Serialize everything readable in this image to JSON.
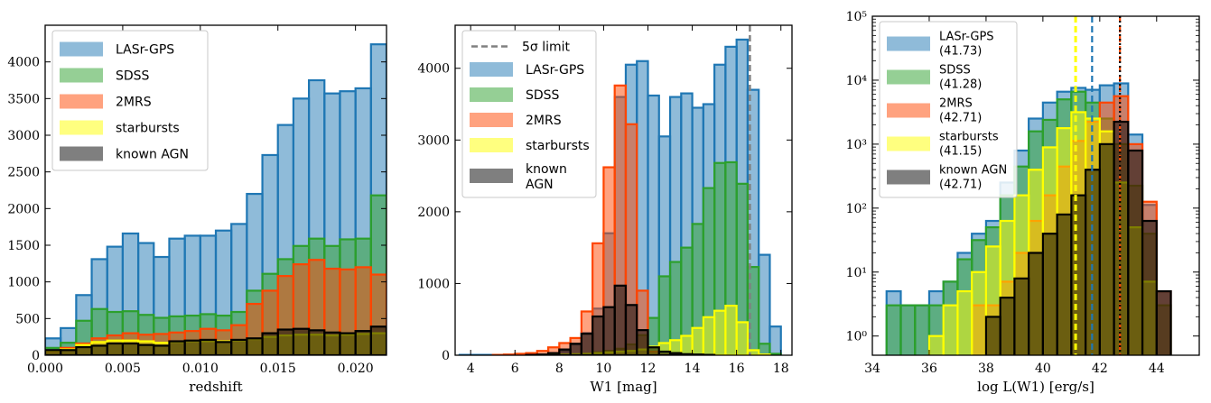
{
  "colors": {
    "LASr-GPS": "#1f77b4",
    "SDSS": "#2ca02c",
    "2MRS": "#ff4500",
    "starbursts": "#ffff00",
    "known AGN": "#000000"
  },
  "chart_data": [
    {
      "type": "bar",
      "xlabel": "redshift",
      "ylabel": "",
      "xlim": [
        0.0,
        0.022
      ],
      "ylim": [
        0,
        4500
      ],
      "xticks": [
        0.0,
        0.005,
        0.01,
        0.015,
        0.02
      ],
      "xtick_labels": [
        "0.000",
        "0.005",
        "0.010",
        "0.015",
        "0.020"
      ],
      "yticks": [
        0,
        500,
        1000,
        1500,
        2000,
        2500,
        3000,
        3500,
        4000
      ],
      "yscale": "linear",
      "legend_position": "top-left",
      "bin_edges": [
        0.0,
        0.001,
        0.002,
        0.003,
        0.004,
        0.005,
        0.006,
        0.007,
        0.008,
        0.009,
        0.01,
        0.011,
        0.012,
        0.013,
        0.014,
        0.015,
        0.016,
        0.017,
        0.018,
        0.019,
        0.02,
        0.021,
        0.022
      ],
      "series": [
        {
          "name": "LASr-GPS",
          "values": [
            230,
            370,
            820,
            1310,
            1480,
            1660,
            1530,
            1340,
            1590,
            1630,
            1630,
            1700,
            1790,
            2200,
            2730,
            3140,
            3500,
            3750,
            3570,
            3600,
            3640,
            4240
          ]
        },
        {
          "name": "SDSS",
          "values": [
            100,
            170,
            470,
            630,
            590,
            600,
            550,
            510,
            530,
            540,
            560,
            540,
            590,
            880,
            1110,
            1310,
            1490,
            1590,
            1490,
            1580,
            1590,
            2180
          ]
        },
        {
          "name": "2MRS",
          "values": [
            50,
            100,
            160,
            230,
            270,
            300,
            280,
            290,
            310,
            330,
            360,
            340,
            410,
            700,
            880,
            1080,
            1240,
            1300,
            1180,
            1170,
            1200,
            1100
          ]
        },
        {
          "name": "starbursts",
          "values": [
            60,
            80,
            140,
            180,
            200,
            200,
            190,
            170,
            180,
            190,
            190,
            190,
            200,
            220,
            250,
            270,
            280,
            280,
            270,
            280,
            290,
            300
          ]
        },
        {
          "name": "known AGN",
          "values": [
            70,
            70,
            110,
            130,
            160,
            160,
            140,
            130,
            190,
            200,
            210,
            180,
            210,
            230,
            300,
            350,
            360,
            340,
            310,
            300,
            330,
            390
          ]
        }
      ]
    },
    {
      "type": "bar",
      "xlabel": "W1 [mag]",
      "ylabel": "",
      "xlim": [
        3.3,
        18.5
      ],
      "ylim": [
        0,
        4600
      ],
      "xticks": [
        4,
        6,
        8,
        10,
        12,
        14,
        16,
        18
      ],
      "xtick_labels": [
        "4",
        "6",
        "8",
        "10",
        "12",
        "14",
        "16",
        "18"
      ],
      "yticks": [
        0,
        1000,
        2000,
        3000,
        4000
      ],
      "yscale": "linear",
      "legend_position": "top-left",
      "vline": {
        "x": 16.6,
        "label": "5σ limit"
      },
      "bin_edges": [
        3.5,
        4.0,
        4.5,
        5.0,
        5.5,
        6.0,
        6.5,
        7.0,
        7.5,
        8.0,
        8.5,
        9.0,
        9.5,
        10.0,
        10.5,
        11.0,
        11.5,
        12.0,
        12.5,
        13.0,
        13.5,
        14.0,
        14.5,
        15.0,
        15.5,
        16.0,
        16.5,
        17.0,
        17.5,
        18.0
      ],
      "series": [
        {
          "name": "LASr-GPS",
          "values": [
            5,
            5,
            5,
            5,
            5,
            5,
            5,
            10,
            20,
            60,
            150,
            310,
            650,
            1700,
            3600,
            4050,
            4100,
            3620,
            3050,
            3600,
            3650,
            3450,
            3500,
            4050,
            4300,
            4400,
            3700,
            1400,
            400,
            100
          ]
        },
        {
          "name": "SDSS",
          "values": [
            0,
            0,
            0,
            0,
            0,
            0,
            0,
            0,
            0,
            5,
            10,
            20,
            40,
            60,
            90,
            150,
            280,
            520,
            1100,
            1300,
            1500,
            1830,
            2330,
            2680,
            2690,
            2390,
            1230,
            160,
            20,
            0
          ]
        },
        {
          "name": "2MRS",
          "values": [
            0,
            0,
            0,
            5,
            10,
            20,
            30,
            60,
            110,
            170,
            240,
            610,
            1560,
            2620,
            3760,
            3220,
            900,
            50,
            5,
            0,
            0,
            0,
            0,
            0,
            0,
            0,
            0,
            0,
            0,
            0
          ]
        },
        {
          "name": "starbursts",
          "values": [
            0,
            0,
            0,
            0,
            0,
            0,
            0,
            0,
            5,
            10,
            15,
            20,
            30,
            40,
            50,
            60,
            80,
            120,
            170,
            210,
            270,
            380,
            530,
            620,
            690,
            460,
            70,
            10,
            0,
            0
          ]
        },
        {
          "name": "known AGN",
          "values": [
            0,
            0,
            0,
            0,
            0,
            0,
            5,
            10,
            30,
            80,
            160,
            300,
            540,
            670,
            970,
            700,
            350,
            110,
            50,
            30,
            15,
            10,
            5,
            0,
            0,
            0,
            0,
            0,
            0,
            0
          ]
        }
      ]
    },
    {
      "type": "bar",
      "xlabel": "log L(W1) [erg/s]",
      "ylabel": "",
      "xlim": [
        34,
        45.5
      ],
      "ylim_log10": [
        -0.3,
        5
      ],
      "xticks": [
        34,
        36,
        38,
        40,
        42,
        44
      ],
      "xtick_labels": [
        "34",
        "36",
        "38",
        "40",
        "42",
        "44"
      ],
      "yticks_log10": [
        0,
        1,
        2,
        3,
        4,
        5
      ],
      "ytick_labels": [
        "10⁰",
        "10¹",
        "10²",
        "10³",
        "10⁴",
        "10⁵"
      ],
      "yscale": "log",
      "legend_position": "top-left",
      "vlines": [
        {
          "series": "LASr-GPS",
          "x": 41.73
        },
        {
          "series": "starbursts",
          "x": 41.15
        },
        {
          "series": "2MRS",
          "x": 42.71
        },
        {
          "series": "known AGN",
          "x": 42.71
        }
      ],
      "legend_values": {
        "LASr-GPS": "(41.73)",
        "SDSS": "(41.28)",
        "2MRS": "(42.71)",
        "starbursts": "(41.15)",
        "known AGN": "(42.71)"
      },
      "bin_edges": [
        34.5,
        35.0,
        35.5,
        36.0,
        36.5,
        37.0,
        37.5,
        38.0,
        38.5,
        39.0,
        39.5,
        40.0,
        40.5,
        41.0,
        41.5,
        42.0,
        42.5,
        43.0,
        43.5,
        44.0,
        44.5
      ],
      "series": [
        {
          "name": "LASr-GPS",
          "log10_values": [
            0.7,
            0.48,
            0.48,
            0.7,
            0.85,
            1.3,
            1.6,
            1.8,
            2.4,
            2.9,
            3.4,
            3.65,
            3.82,
            3.88,
            3.85,
            3.92,
            3.95,
            3.15,
            2.05,
            0.7
          ]
        },
        {
          "name": "SDSS",
          "log10_values": [
            0.48,
            0.48,
            0.48,
            0.48,
            0.85,
            1.2,
            1.5,
            1.7,
            2.2,
            2.65,
            3.2,
            3.38,
            3.7,
            3.82,
            3.65,
            3.4,
            3.0,
            2.35,
            1.6,
            0.48
          ]
        },
        {
          "name": "2MRS",
          "log10_values": [
            null,
            null,
            null,
            null,
            null,
            null,
            0.48,
            0.48,
            0.85,
            1.3,
            1.8,
            2.2,
            2.65,
            3.05,
            3.35,
            3.65,
            3.75,
            3.0,
            2.1,
            0.7
          ]
        },
        {
          "name": "starbursts",
          "log10_values": [
            null,
            null,
            null,
            0.0,
            0.48,
            0.7,
            1.0,
            1.4,
            1.8,
            2.2,
            2.6,
            2.95,
            3.25,
            3.5,
            3.4,
            3.2,
            2.4,
            1.7,
            0.85,
            null
          ]
        },
        {
          "name": "known AGN",
          "log10_values": [
            null,
            null,
            null,
            null,
            null,
            null,
            null,
            0.3,
            0.6,
            0.9,
            1.3,
            1.6,
            1.9,
            2.2,
            2.6,
            3.0,
            3.35,
            2.9,
            1.8,
            0.7
          ]
        }
      ]
    }
  ]
}
